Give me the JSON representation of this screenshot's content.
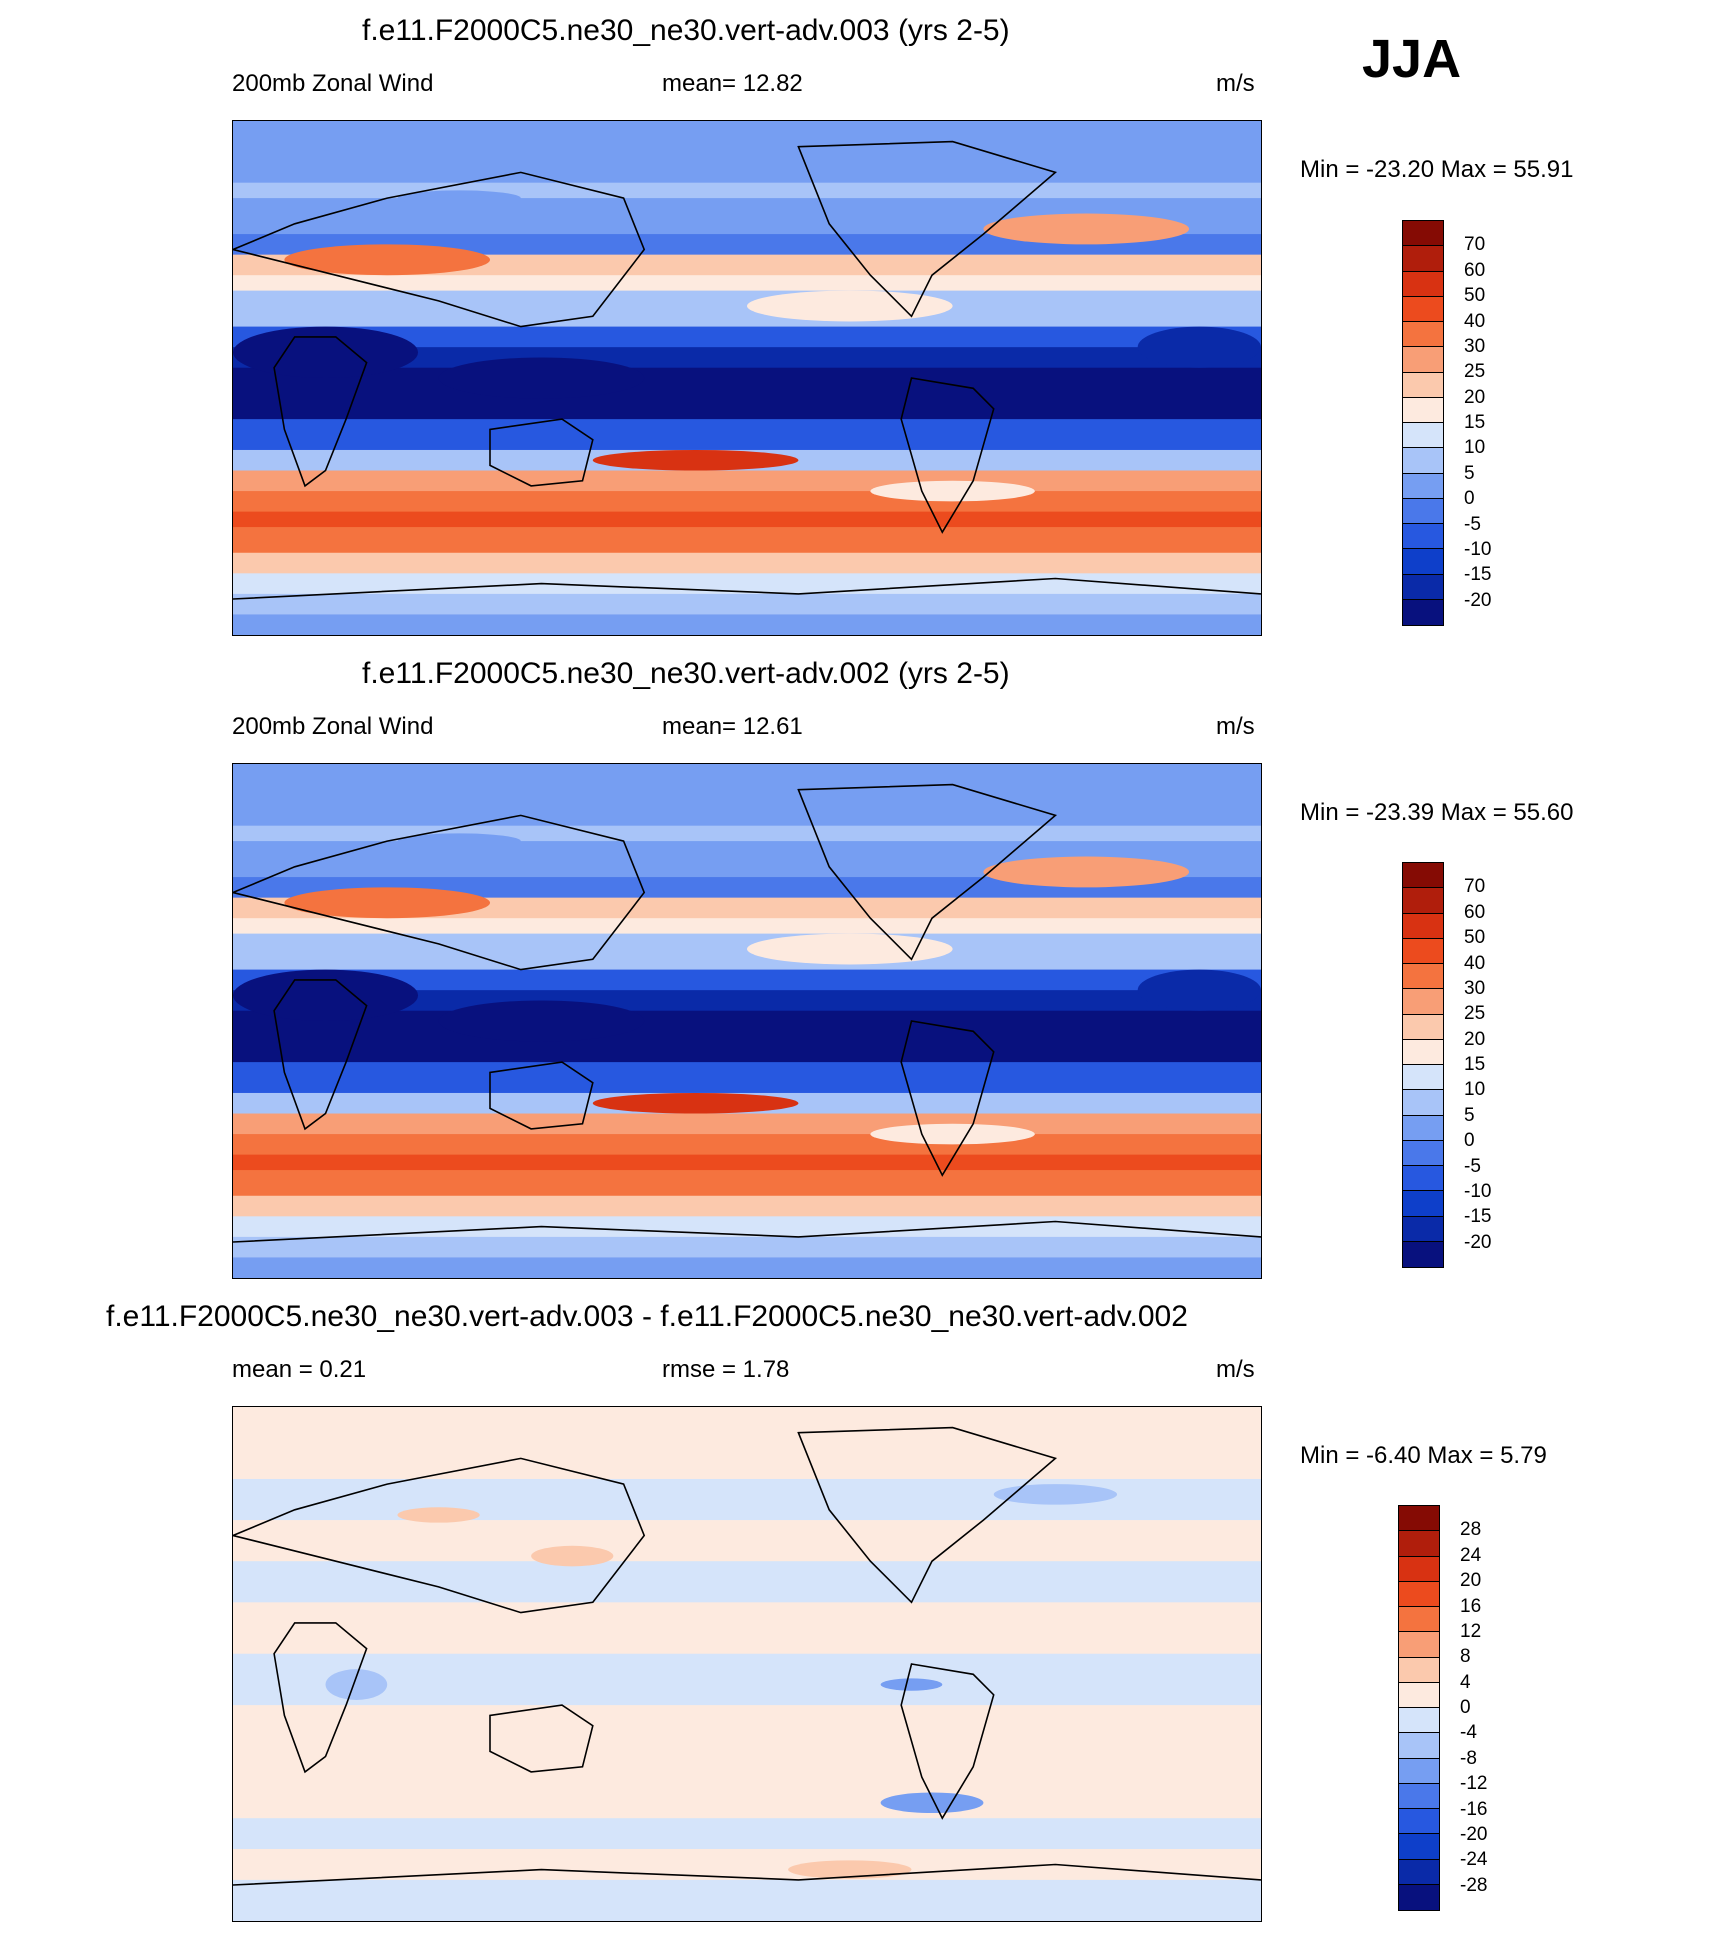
{
  "season": "JJA",
  "colors": {
    "wind": [
      "#08117e",
      "#0a2aa8",
      "#0e3fca",
      "#2758e0",
      "#4a78ea",
      "#769ef2",
      "#a8c4f8",
      "#d5e4fa",
      "#fdeadf",
      "#fbc9ad",
      "#f89e76",
      "#f4733f",
      "#ec4b1e",
      "#d83212",
      "#b01e0c",
      "#850b04"
    ],
    "diff": [
      "#08117e",
      "#0a2aa8",
      "#0e3fca",
      "#2758e0",
      "#4a78ea",
      "#769ef2",
      "#a8c4f8",
      "#d5e4fa",
      "#fdeadf",
      "#fbc9ad",
      "#f89e76",
      "#f4733f",
      "#ec4b1e",
      "#d83212",
      "#b01e0c",
      "#850b04"
    ]
  },
  "panels": [
    {
      "title": "f.e11.F2000C5.ne30_ne30.vert-adv.003 (yrs 2-5)",
      "left_label": "200mb Zonal Wind",
      "center_label": "mean=  12.82",
      "units": "m/s",
      "minmax": "Min = -23.20 Max =  55.91",
      "colorbar_labels": [
        "70",
        "60",
        "50",
        "40",
        "30",
        "25",
        "20",
        "15",
        "10",
        "5",
        "0",
        "-5",
        "-10",
        "-15",
        "-20"
      ],
      "field": "wind"
    },
    {
      "title": "f.e11.F2000C5.ne30_ne30.vert-adv.002 (yrs 2-5)",
      "left_label": "200mb Zonal Wind",
      "center_label": "mean=  12.61",
      "units": "m/s",
      "minmax": "Min = -23.39 Max =  55.60",
      "colorbar_labels": [
        "70",
        "60",
        "50",
        "40",
        "30",
        "25",
        "20",
        "15",
        "10",
        "5",
        "0",
        "-5",
        "-10",
        "-15",
        "-20"
      ],
      "field": "wind"
    },
    {
      "title": "f.e11.F2000C5.ne30_ne30.vert-adv.003 - f.e11.F2000C5.ne30_ne30.vert-adv.002",
      "left_label": "mean =   0.21",
      "center_label": "rmse =   1.78",
      "units": "m/s",
      "minmax": "Min =  -6.40 Max =   5.79",
      "colorbar_labels": [
        "28",
        "24",
        "20",
        "16",
        "12",
        "8",
        "4",
        "0",
        "-4",
        "-8",
        "-12",
        "-16",
        "-20",
        "-24",
        "-28"
      ],
      "field": "diff"
    }
  ]
}
